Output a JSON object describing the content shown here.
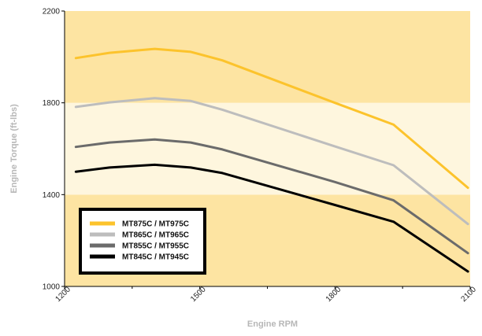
{
  "chart_data": {
    "type": "line",
    "title": "",
    "xlabel": "Engine RPM",
    "ylabel": "Engine Torque (ft-lbs)",
    "xlim": [
      1200,
      2100
    ],
    "ylim": [
      1000,
      2200
    ],
    "x_ticks": [
      "1200",
      "1500",
      "1800",
      "2100"
    ],
    "y_ticks": [
      "1000",
      "1400",
      "1800",
      "2200"
    ],
    "x_minor_ticks": [
      1350,
      1650,
      1950
    ],
    "bands": [
      {
        "from": 1000,
        "to": 1400,
        "color": "#fde4a2"
      },
      {
        "from": 1400,
        "to": 1800,
        "color": "#fef6de"
      },
      {
        "from": 1800,
        "to": 2200,
        "color": "#fde4a2"
      }
    ],
    "grid": false,
    "legend_position": "bottom-left",
    "series": [
      {
        "name": "MT875C / MT975C",
        "color": "#fcc32c",
        "x": [
          1225,
          1300,
          1400,
          1480,
          1550,
          1800,
          1930,
          2095
        ],
        "y": [
          1995,
          2018,
          2035,
          2022,
          1985,
          1800,
          1705,
          1430
        ]
      },
      {
        "name": "MT865C / MT965C",
        "color": "#bdbdbd",
        "x": [
          1225,
          1300,
          1400,
          1480,
          1550,
          1800,
          1930,
          2095
        ],
        "y": [
          1782,
          1802,
          1820,
          1808,
          1770,
          1610,
          1528,
          1272
        ]
      },
      {
        "name": "MT855C / MT955C",
        "color": "#6b6b6b",
        "x": [
          1225,
          1300,
          1400,
          1480,
          1550,
          1800,
          1930,
          2095
        ],
        "y": [
          1608,
          1627,
          1640,
          1627,
          1597,
          1455,
          1375,
          1145
        ]
      },
      {
        "name": "MT845C / MT945C",
        "color": "#000000",
        "x": [
          1225,
          1300,
          1400,
          1480,
          1550,
          1800,
          1930,
          2095
        ],
        "y": [
          1500,
          1518,
          1530,
          1518,
          1494,
          1355,
          1282,
          1065
        ]
      }
    ]
  }
}
